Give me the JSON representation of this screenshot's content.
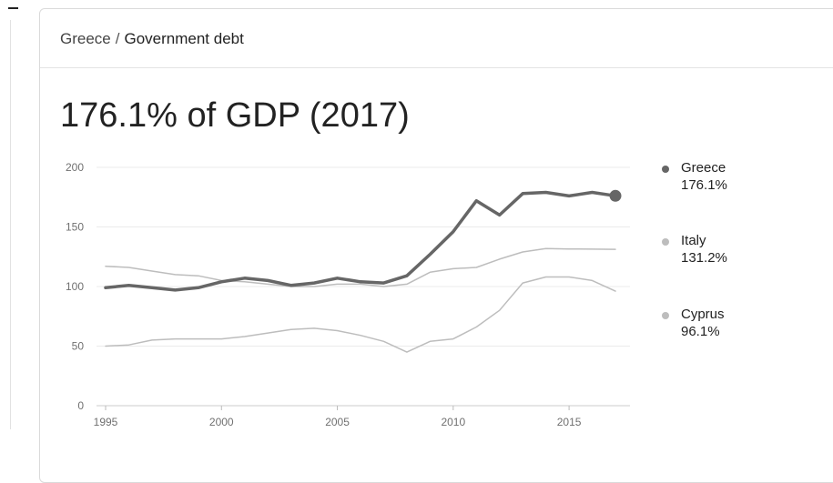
{
  "breadcrumb": {
    "country": "Greece",
    "separator": "/",
    "topic": "Government debt"
  },
  "headline": "176.1% of GDP (2017)",
  "chart_data": {
    "type": "line",
    "x": [
      1995,
      1996,
      1997,
      1998,
      1999,
      2000,
      2001,
      2002,
      2003,
      2004,
      2005,
      2006,
      2007,
      2008,
      2009,
      2010,
      2011,
      2012,
      2013,
      2014,
      2015,
      2016,
      2017
    ],
    "series": [
      {
        "name": "Greece",
        "display_value": "176.1%",
        "color": "#666666",
        "emphasis": true,
        "values": [
          99,
          101,
          99,
          97,
          99,
          104,
          107,
          105,
          101,
          103,
          107,
          104,
          103,
          109,
          127,
          146,
          172,
          160,
          178,
          179,
          176,
          179,
          176.1
        ]
      },
      {
        "name": "Italy",
        "display_value": "131.2%",
        "color": "#bdbdbd",
        "emphasis": false,
        "values": [
          117,
          116,
          113,
          110,
          109,
          105,
          104,
          102,
          100,
          100,
          102,
          102,
          100,
          102,
          112,
          115,
          116,
          123,
          129,
          131.8,
          131.5,
          131.4,
          131.2
        ]
      },
      {
        "name": "Cyprus",
        "display_value": "96.1%",
        "color": "#bdbdbd",
        "emphasis": false,
        "values": [
          50,
          51,
          55,
          56,
          56,
          56,
          58,
          61,
          64,
          65,
          63,
          59,
          54,
          45,
          54,
          56,
          66,
          80,
          103,
          108,
          108,
          105,
          96.1
        ]
      }
    ],
    "x_ticks": [
      "1995",
      "2000",
      "2005",
      "2010",
      "2015"
    ],
    "y_ticks": [
      "0",
      "50",
      "100",
      "150",
      "200"
    ],
    "xlim": [
      1995,
      2017
    ],
    "ylim": [
      0,
      200
    ],
    "grid": true,
    "legend_position": "right",
    "title": "",
    "xlabel": "",
    "ylabel": ""
  }
}
